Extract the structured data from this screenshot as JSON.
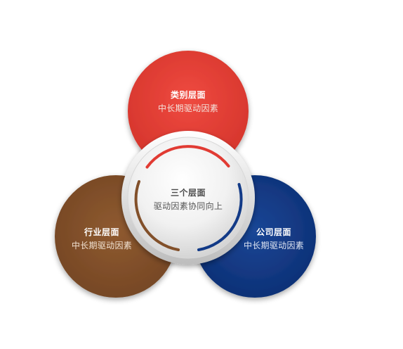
{
  "nodes": {
    "top": {
      "title": "类别层面",
      "subtitle": "中长期驱动因素",
      "color": "#e13b33"
    },
    "left": {
      "title": "行业层面",
      "subtitle": "中长期驱动因素",
      "color": "#82502a"
    },
    "right": {
      "title": "公司层面",
      "subtitle": "中长期驱动因素",
      "color": "#123a87"
    },
    "center": {
      "title": "三个层面",
      "subtitle": "驱动因素协同向上"
    }
  }
}
